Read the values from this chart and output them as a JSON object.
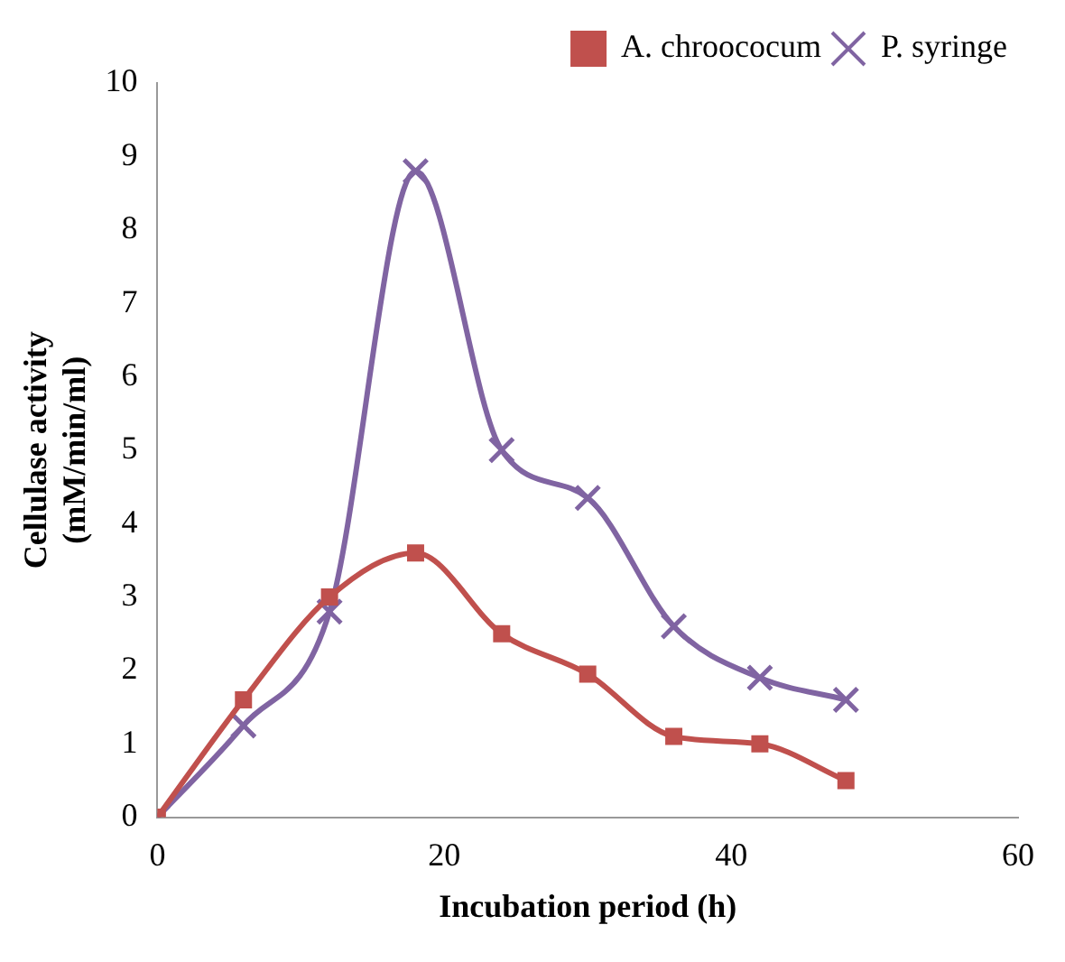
{
  "chart_data": {
    "type": "line",
    "xlabel": "Incubation period (h)",
    "ylabel": "Cellulase activity\n(mM/min/ml)",
    "x": [
      0,
      6,
      12,
      18,
      24,
      30,
      36,
      42,
      48
    ],
    "xlim": [
      0,
      60
    ],
    "xticks": [
      0,
      20,
      40,
      60
    ],
    "ylim": [
      0,
      10
    ],
    "yticks": [
      0,
      1,
      2,
      3,
      4,
      5,
      6,
      7,
      8,
      9,
      10
    ],
    "grid": false,
    "legend": "top right",
    "series": [
      {
        "name": "A. chroococum",
        "color": "#c0504d",
        "marker": "square",
        "values": [
          0,
          1.6,
          3.0,
          3.6,
          2.5,
          1.95,
          1.1,
          1.0,
          0.5
        ]
      },
      {
        "name": "P. syringe",
        "color": "#8064a2",
        "marker": "cross",
        "values": [
          0,
          1.25,
          2.8,
          8.8,
          5.0,
          4.35,
          2.6,
          1.9,
          1.6
        ]
      }
    ]
  }
}
